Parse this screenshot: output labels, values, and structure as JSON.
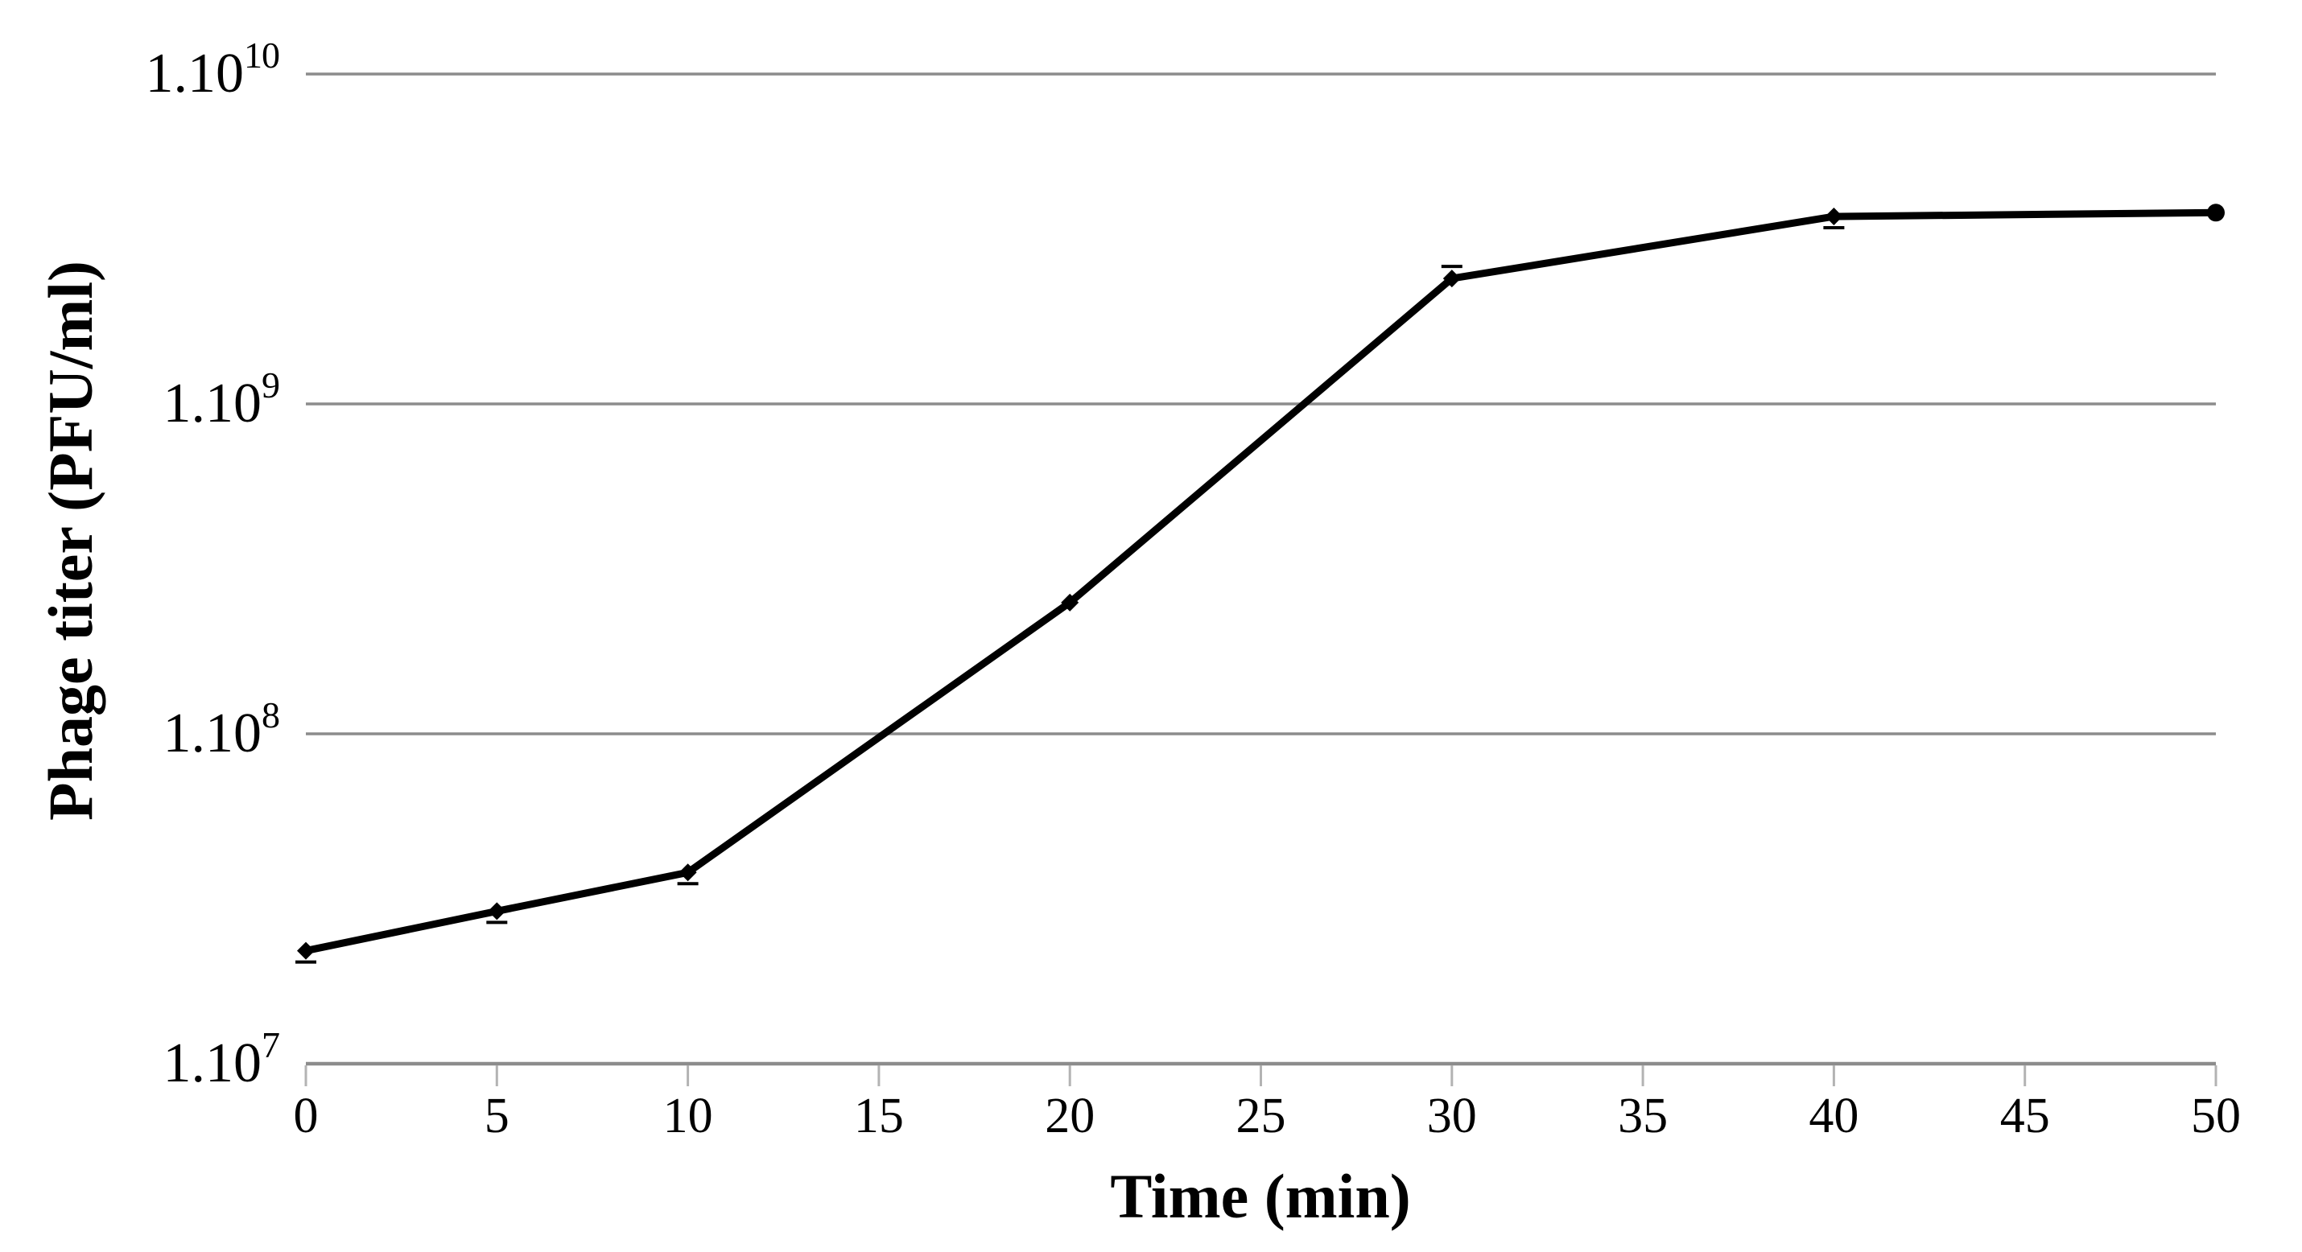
{
  "figure": {
    "background": "#ffffff",
    "text_color": "#000000",
    "grid_color": "#8c8c8c",
    "axis_color": "#8c8c8c",
    "tick_mark_color": "#b3b3b3",
    "series_color": "#000000"
  },
  "chart_data": {
    "type": "line",
    "title": "",
    "xlabel": "Time (min)",
    "ylabel": "Phage titer (PFU/ml)",
    "x_scale": "linear",
    "y_scale": "log",
    "xlim": [
      0,
      50
    ],
    "ylim": [
      10000000.0,
      10000000000.0
    ],
    "x_ticks": [
      0,
      5,
      10,
      15,
      20,
      25,
      30,
      35,
      40,
      45,
      50
    ],
    "y_ticks": [
      {
        "base": "1.10",
        "exp": "7",
        "value": 10000000.0
      },
      {
        "base": "1.10",
        "exp": "8",
        "value": 100000000.0
      },
      {
        "base": "1.10",
        "exp": "9",
        "value": 1000000000.0
      },
      {
        "base": "1.10",
        "exp": "10",
        "value": 10000000000.0
      }
    ],
    "grid": "horizontal-decade-gridlines",
    "legend": "none",
    "series": [
      {
        "name": "Phage titer",
        "color": "#000000",
        "marker": "diamond",
        "x": [
          0,
          5,
          10,
          20,
          30,
          40,
          50
        ],
        "y": [
          22000000.0,
          29000000.0,
          38000000.0,
          250000000.0,
          2400000000.0,
          3700000000.0,
          3800000000.0
        ]
      }
    ],
    "error_bar_caps": [
      {
        "x": 0,
        "dir": "below"
      },
      {
        "x": 5,
        "dir": "below"
      },
      {
        "x": 10,
        "dir": "below"
      },
      {
        "x": 30,
        "dir": "above"
      },
      {
        "x": 40,
        "dir": "below"
      }
    ]
  }
}
